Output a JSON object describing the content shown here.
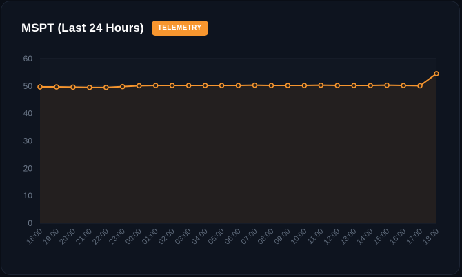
{
  "header": {
    "title": "MSPT (Last 24 Hours)",
    "badge": "TELEMETRY"
  },
  "colors": {
    "accent": "#f7962f",
    "fill": "#231f1f",
    "grid": "#1f2530",
    "card": "#0e141f"
  },
  "chart_data": {
    "type": "area",
    "title": "MSPT (Last 24 Hours)",
    "categories": [
      "18:00",
      "19:00",
      "20:00",
      "21:00",
      "22:00",
      "23:00",
      "00:00",
      "01:00",
      "02:00",
      "03:00",
      "04:00",
      "05:00",
      "06:00",
      "07:00",
      "08:00",
      "09:00",
      "10:00",
      "11:00",
      "12:00",
      "13:00",
      "14:00",
      "15:00",
      "16:00",
      "17:00",
      "18:00"
    ],
    "series": [
      {
        "values": [
          49.7,
          49.7,
          49.6,
          49.5,
          49.5,
          49.8,
          50.1,
          50.2,
          50.2,
          50.2,
          50.2,
          50.2,
          50.2,
          50.3,
          50.2,
          50.2,
          50.2,
          50.3,
          50.2,
          50.2,
          50.2,
          50.3,
          50.2,
          50.1,
          54.5
        ]
      }
    ],
    "yticks": [
      0,
      10,
      20,
      30,
      40,
      50,
      60
    ],
    "ylim": [
      0,
      60
    ],
    "grid": true,
    "legend": "none"
  }
}
